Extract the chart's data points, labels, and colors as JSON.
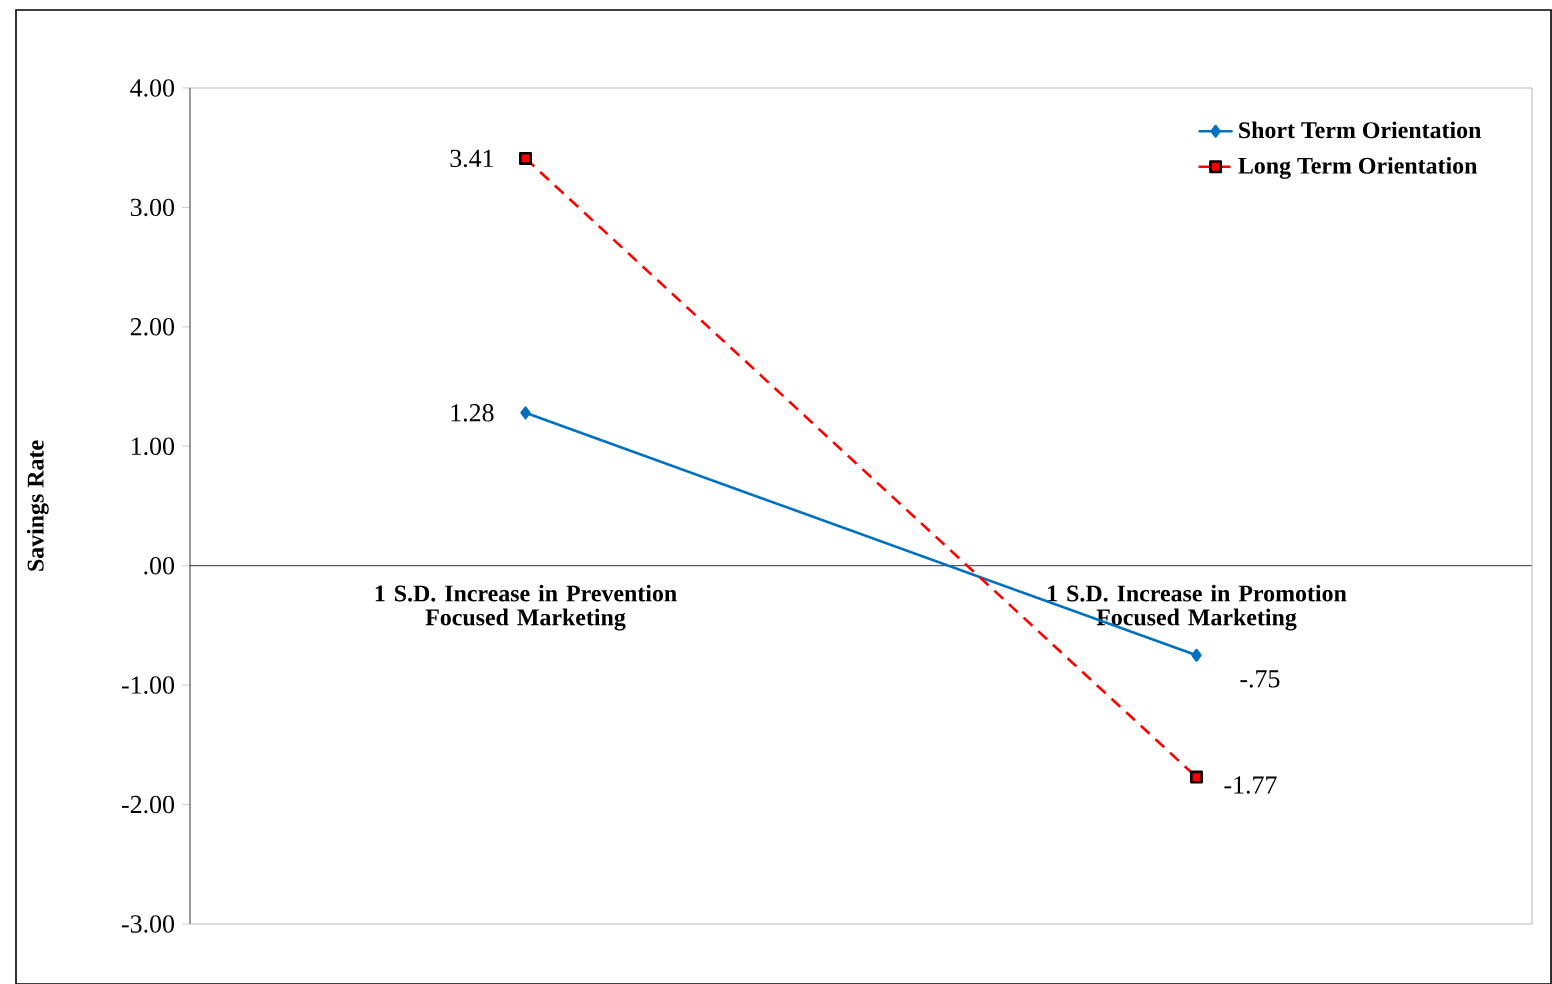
{
  "chart_data": {
    "type": "line",
    "ylabel": "Savings Rate",
    "categories": [
      "1 S.D. Increase in Prevention Focused Marketing",
      "1 S.D. Increase in Promotion Focused Marketing"
    ],
    "series": [
      {
        "name": "Short Term Orientation",
        "color": "#0070c0",
        "values": [
          1.28,
          -0.75
        ],
        "value_labels": [
          "1.28",
          "-.75"
        ],
        "marker": "diamond",
        "line_style": "solid"
      },
      {
        "name": "Long Term Orientation",
        "color": "#ff0000",
        "values": [
          3.41,
          -1.77
        ],
        "value_labels": [
          "3.41",
          "-1.77"
        ],
        "marker": "square",
        "line_style": "dashed"
      }
    ],
    "ylim": [
      -3,
      4
    ],
    "yticks": [
      {
        "value": -3,
        "label": "-3.00"
      },
      {
        "value": -2,
        "label": "-2.00"
      },
      {
        "value": -1,
        "label": "-1.00"
      },
      {
        "value": 0,
        "label": ".00"
      },
      {
        "value": 1,
        "label": "1.00"
      },
      {
        "value": 2,
        "label": "2.00"
      },
      {
        "value": 3,
        "label": "3.00"
      },
      {
        "value": 4,
        "label": "4.00"
      }
    ],
    "legend": "top right",
    "grid": false
  }
}
